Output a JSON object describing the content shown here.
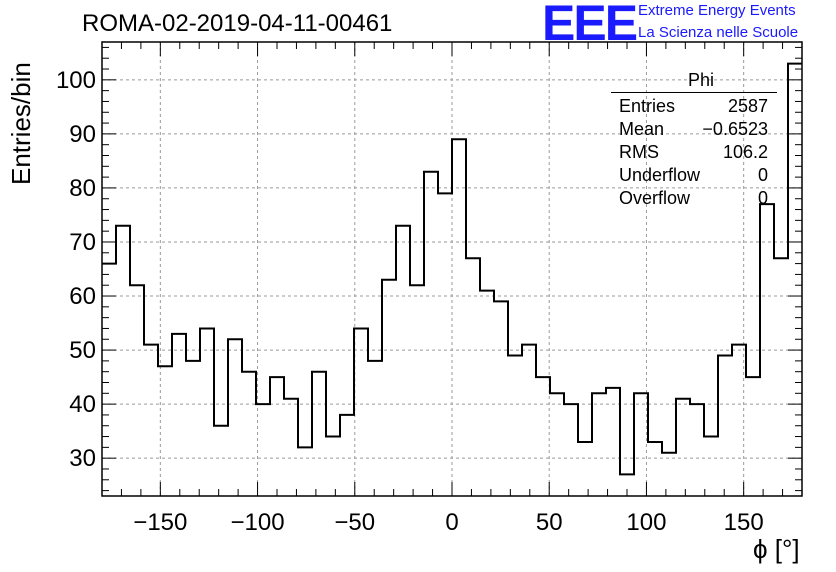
{
  "title": "ROMA-02-2019-04-11-00461",
  "logo": {
    "mark": "EEE",
    "line1": "Extreme Energy Events",
    "line2": "La Scienza nelle Scuole",
    "color": "#1a1aff"
  },
  "stats": {
    "title": "Phi",
    "rows": [
      {
        "label": "Entries",
        "value": "2587"
      },
      {
        "label": "Mean",
        "value": "−0.6523"
      },
      {
        "label": "RMS",
        "value": "106.2"
      },
      {
        "label": "Underflow",
        "value": "0"
      },
      {
        "label": "Overflow",
        "value": "0"
      }
    ]
  },
  "chart_data": {
    "type": "histogram",
    "title": "ROMA-02-2019-04-11-00461",
    "xlabel": "ϕ [°]",
    "ylabel": "Entries/bin",
    "xlim": [
      -180,
      180
    ],
    "ylim": [
      23,
      107
    ],
    "xticks": [
      -150,
      -100,
      -50,
      0,
      50,
      100,
      150
    ],
    "yticks": [
      30,
      40,
      50,
      60,
      70,
      80,
      90,
      100
    ],
    "grid": true,
    "bin_width": 7.2,
    "bin_edges_start": -180,
    "values": [
      66,
      73,
      62,
      51,
      47,
      53,
      48,
      54,
      36,
      52,
      46,
      40,
      45,
      41,
      32,
      46,
      34,
      38,
      54,
      48,
      63,
      73,
      62,
      83,
      79,
      89,
      67,
      61,
      59,
      49,
      51,
      45,
      42,
      40,
      33,
      42,
      43,
      27,
      42,
      33,
      31,
      41,
      40,
      34,
      49,
      51,
      45,
      77,
      67,
      103
    ]
  }
}
